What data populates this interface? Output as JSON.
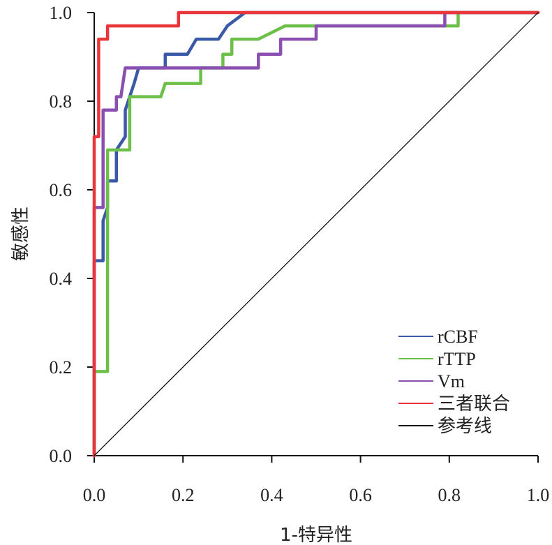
{
  "chart_data": {
    "type": "line",
    "title": "",
    "xlabel": "1-特异性",
    "ylabel": "敏感性",
    "xlim": [
      0,
      1
    ],
    "ylim": [
      0,
      1
    ],
    "x_ticks": [
      "0.0",
      "0.2",
      "0.4",
      "0.6",
      "0.8",
      "1.0"
    ],
    "y_ticks": [
      "0.0",
      "0.2",
      "0.4",
      "0.6",
      "0.8",
      "1.0"
    ],
    "grid": false,
    "legend_position": "bottom-right",
    "series": [
      {
        "name": "rCBF",
        "color": "#3a5aa8",
        "points": [
          [
            0,
            0
          ],
          [
            0,
            0.44
          ],
          [
            0.02,
            0.44
          ],
          [
            0.02,
            0.53
          ],
          [
            0.03,
            0.56
          ],
          [
            0.03,
            0.62
          ],
          [
            0.05,
            0.62
          ],
          [
            0.05,
            0.69
          ],
          [
            0.07,
            0.72
          ],
          [
            0.07,
            0.78
          ],
          [
            0.09,
            0.84
          ],
          [
            0.1,
            0.875
          ],
          [
            0.16,
            0.875
          ],
          [
            0.16,
            0.906
          ],
          [
            0.21,
            0.906
          ],
          [
            0.23,
            0.94
          ],
          [
            0.28,
            0.94
          ],
          [
            0.3,
            0.97
          ],
          [
            0.34,
            1.0
          ],
          [
            1.0,
            1.0
          ]
        ]
      },
      {
        "name": "rTTP",
        "color": "#6cc04a",
        "points": [
          [
            0,
            0
          ],
          [
            0,
            0.19
          ],
          [
            0.03,
            0.19
          ],
          [
            0.03,
            0.69
          ],
          [
            0.08,
            0.69
          ],
          [
            0.08,
            0.81
          ],
          [
            0.15,
            0.81
          ],
          [
            0.16,
            0.84
          ],
          [
            0.24,
            0.84
          ],
          [
            0.24,
            0.875
          ],
          [
            0.29,
            0.875
          ],
          [
            0.29,
            0.906
          ],
          [
            0.31,
            0.906
          ],
          [
            0.31,
            0.94
          ],
          [
            0.37,
            0.94
          ],
          [
            0.43,
            0.97
          ],
          [
            0.82,
            0.97
          ],
          [
            0.82,
            1.0
          ],
          [
            1.0,
            1.0
          ]
        ]
      },
      {
        "name": "Vm",
        "color": "#8a4fb0",
        "points": [
          [
            0,
            0
          ],
          [
            0,
            0.56
          ],
          [
            0.02,
            0.56
          ],
          [
            0.02,
            0.78
          ],
          [
            0.05,
            0.78
          ],
          [
            0.05,
            0.81
          ],
          [
            0.06,
            0.81
          ],
          [
            0.07,
            0.875
          ],
          [
            0.37,
            0.875
          ],
          [
            0.37,
            0.906
          ],
          [
            0.42,
            0.906
          ],
          [
            0.42,
            0.94
          ],
          [
            0.5,
            0.94
          ],
          [
            0.5,
            0.97
          ],
          [
            0.79,
            0.97
          ],
          [
            0.79,
            1.0
          ],
          [
            1.0,
            1.0
          ]
        ]
      },
      {
        "name": "三者联合",
        "color": "#e8363a",
        "points": [
          [
            0,
            0
          ],
          [
            0,
            0.72
          ],
          [
            0.01,
            0.72
          ],
          [
            0.01,
            0.94
          ],
          [
            0.03,
            0.94
          ],
          [
            0.03,
            0.97
          ],
          [
            0.19,
            0.97
          ],
          [
            0.19,
            1.0
          ],
          [
            1.0,
            1.0
          ]
        ]
      },
      {
        "name": "参考线",
        "color": "#111111",
        "points": [
          [
            0,
            0
          ],
          [
            1,
            1
          ]
        ]
      }
    ]
  }
}
